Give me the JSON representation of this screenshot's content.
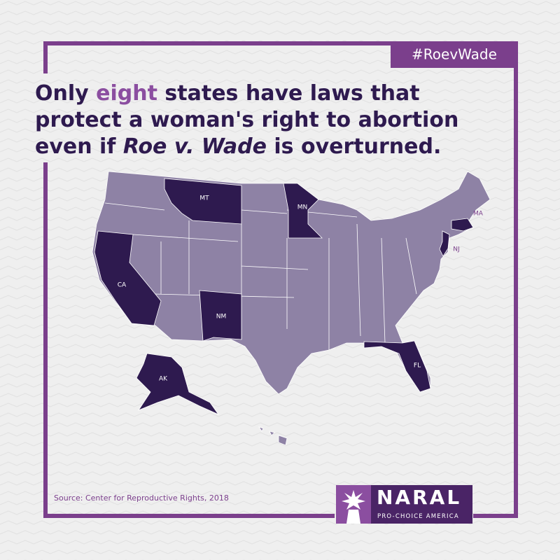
{
  "hashtag": "#RoevWade",
  "headline": {
    "lines": [
      {
        "before": "Only",
        "highlight": "eight",
        "after": "states have laws that"
      },
      {
        "text": "protect a woman's right to abortion"
      },
      {
        "before": "even if",
        "italic": "Roe v. Wade",
        "after": "is overturned."
      }
    ]
  },
  "map": {
    "states": [
      "MT",
      "MN",
      "MA",
      "CA",
      "NJ",
      "NM",
      "FL",
      "AK"
    ]
  },
  "source": "Source: Center for Reproductive Rights, 2018",
  "logo": {
    "name": "NARAL",
    "tagline": "PRO-CHOICE AMERICA"
  }
}
